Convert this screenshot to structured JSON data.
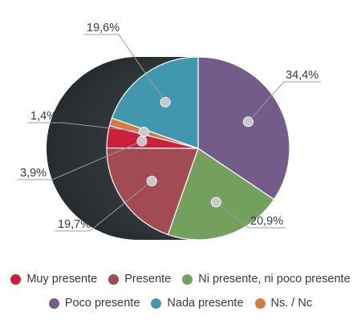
{
  "chart_data": {
    "type": "pie",
    "title": "",
    "slices": [
      {
        "name": "Poco presente",
        "value": 34.4,
        "label": "34,4%",
        "color": "#735C89"
      },
      {
        "name": "Ni presente, ni poco presente",
        "value": 20.9,
        "label": "20,9%",
        "color": "#74A05E"
      },
      {
        "name": "Presente",
        "value": 19.7,
        "label": "19,7%",
        "color": "#A34B52"
      },
      {
        "name": "Muy presente",
        "value": 3.9,
        "label": "3,9%",
        "color": "#CC1F3A"
      },
      {
        "name": "Ns. / Nc",
        "value": 1.4,
        "label": "1,4%",
        "color": "#D67A43"
      },
      {
        "name": "Nada presente",
        "value": 19.6,
        "label": "19,6%",
        "color": "#4198AE"
      }
    ],
    "legend": [
      [
        {
          "name": "Muy presente",
          "color": "#CC1F3A"
        },
        {
          "name": "Presente",
          "color": "#A34B52"
        },
        {
          "name": "Ni presente, ni poco presente",
          "color": "#74A05E"
        }
      ],
      [
        {
          "name": "Poco presente",
          "color": "#735C89"
        },
        {
          "name": "Nada presente",
          "color": "#4198AE"
        },
        {
          "name": "Ns. / Nc",
          "color": "#D67A43"
        }
      ]
    ]
  }
}
